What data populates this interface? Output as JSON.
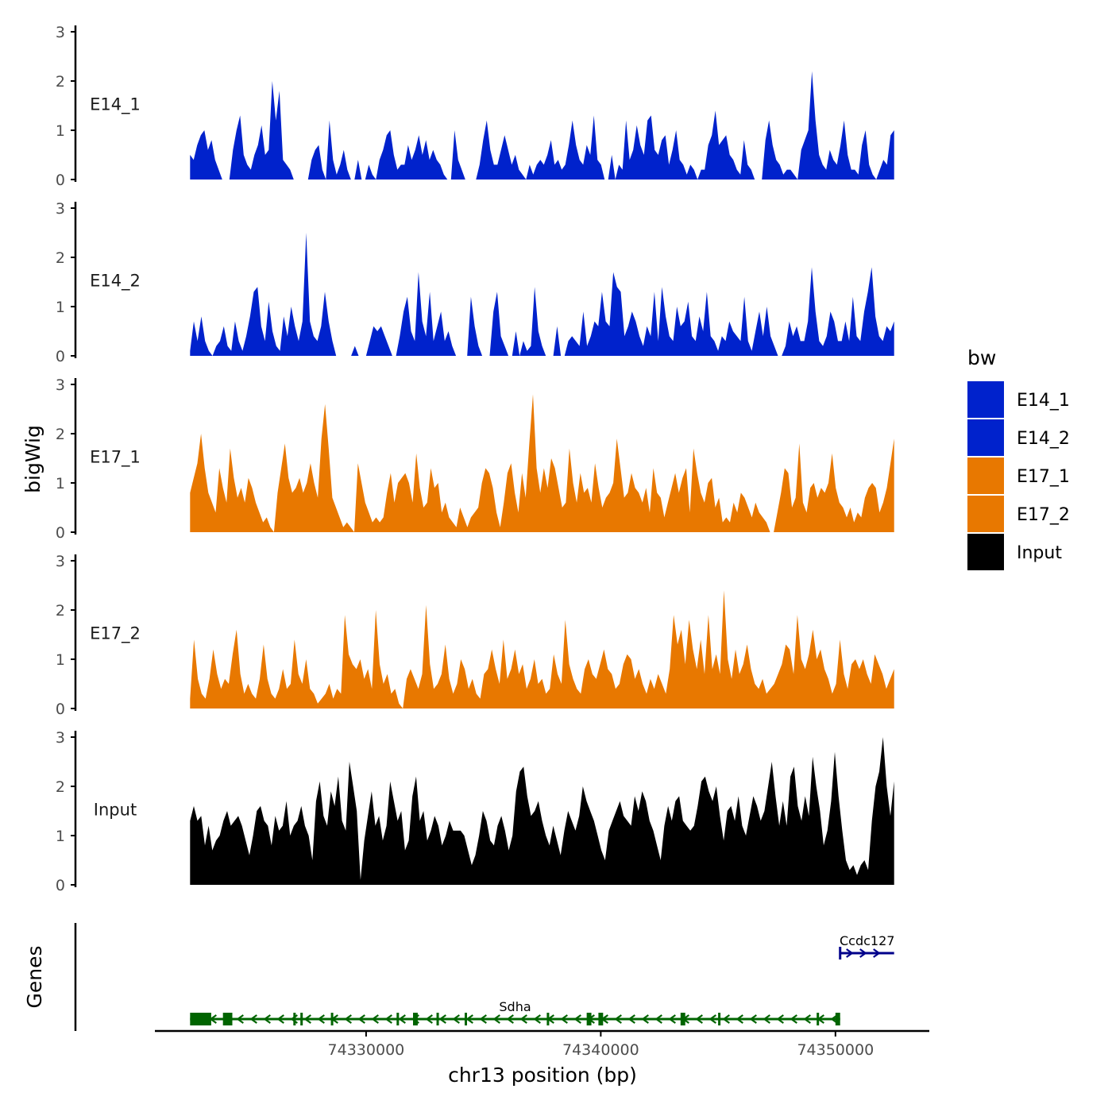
{
  "chart_data": {
    "type": "area",
    "chromosome": "chr13",
    "xlabel": "chr13 position (bp)",
    "xlim": [
      74321000,
      74354000
    ],
    "x_ticks": [
      74330000,
      74340000,
      74350000
    ],
    "x_tick_labels": [
      "74330000",
      "74340000",
      "74350000"
    ],
    "data_range": [
      74322500,
      74352500
    ],
    "ylabel": "bigWig",
    "ylim": [
      0,
      3
    ],
    "y_ticks": [
      0,
      1,
      2,
      3
    ],
    "y_tick_labels": [
      "0",
      "1",
      "2",
      "3"
    ],
    "legend": {
      "title": "bw",
      "position": "right",
      "entries": [
        {
          "label": "E14_1",
          "color": "#0022CC"
        },
        {
          "label": "E14_2",
          "color": "#0022CC"
        },
        {
          "label": "E17_1",
          "color": "#E87800"
        },
        {
          "label": "E17_2",
          "color": "#E87800"
        },
        {
          "label": "Input",
          "color": "#000000"
        }
      ]
    },
    "tracks": [
      {
        "name": "E14_1",
        "color": "#0022CC",
        "values": [
          0.5,
          0.4,
          0.7,
          0.9,
          1.0,
          0.6,
          0.8,
          0.4,
          0.2,
          0,
          0,
          0,
          0.6,
          1.0,
          1.3,
          0.5,
          0.3,
          0.2,
          0.5,
          0.7,
          1.1,
          0.5,
          0.6,
          2.0,
          1.2,
          1.8,
          0.4,
          0.3,
          0.2,
          0,
          0,
          0,
          0,
          0,
          0.4,
          0.6,
          0.7,
          0.2,
          0,
          1.2,
          0.4,
          0.1,
          0.3,
          0.6,
          0.2,
          0,
          0,
          0.4,
          0,
          0,
          0.3,
          0.1,
          0,
          0.4,
          0.6,
          0.9,
          1.0,
          0.5,
          0.2,
          0.3,
          0.3,
          0.7,
          0.4,
          0.6,
          0.9,
          0.5,
          0.8,
          0.4,
          0.6,
          0.4,
          0.3,
          0.1,
          0,
          0,
          1.0,
          0.4,
          0.2,
          0,
          0,
          0,
          0,
          0.3,
          0.8,
          1.2,
          0.6,
          0.3,
          0.3,
          0.6,
          0.9,
          0.6,
          0.3,
          0.5,
          0.2,
          0.1,
          0,
          0.3,
          0.1,
          0.3,
          0.4,
          0.3,
          0.5,
          0.8,
          0.3,
          0.4,
          0.2,
          0.3,
          0.7,
          1.2,
          0.7,
          0.4,
          0.3,
          0.7,
          0.5,
          1.3,
          0.4,
          0.3,
          0,
          0,
          0.5,
          0,
          0.3,
          0.2,
          1.2,
          0.4,
          0.6,
          1.1,
          0.7,
          0.5,
          1.2,
          1.3,
          0.6,
          0.5,
          0.8,
          0.9,
          0.3,
          0.6,
          1.0,
          0.4,
          0.3,
          0.1,
          0.3,
          0.2,
          0,
          0.2,
          0.2,
          0.7,
          0.9,
          1.4,
          0.7,
          0.8,
          0.9,
          0.5,
          0.4,
          0.2,
          0.1,
          0.8,
          0.3,
          0.2,
          0,
          0,
          0,
          0.8,
          1.2,
          0.7,
          0.4,
          0.3,
          0.1,
          0.2,
          0.2,
          0.1,
          0,
          0.6,
          0.8,
          1.0,
          2.2,
          1.2,
          0.5,
          0.3,
          0.2,
          0.6,
          0.4,
          0.3,
          0.7,
          1.2,
          0.5,
          0.2,
          0.2,
          0.1,
          0.7,
          1.0,
          0.3,
          0.1,
          0,
          0.2,
          0.4,
          0.3,
          0.9,
          1.0
        ]
      },
      {
        "name": "E14_2",
        "color": "#0022CC",
        "values": [
          0.1,
          0.7,
          0.3,
          0.8,
          0.3,
          0.1,
          0,
          0.2,
          0.3,
          0.6,
          0.2,
          0.1,
          0.7,
          0.3,
          0.1,
          0.4,
          0.8,
          1.3,
          1.4,
          0.6,
          0.3,
          1.1,
          0.5,
          0.2,
          0.1,
          0.8,
          0.4,
          1.0,
          0.6,
          0.3,
          0.7,
          2.5,
          0.7,
          0.4,
          0.3,
          0.6,
          1.3,
          0.7,
          0.3,
          0,
          0,
          0,
          0,
          0,
          0.2,
          0,
          0,
          0,
          0.3,
          0.6,
          0.5,
          0.6,
          0.4,
          0.2,
          0,
          0,
          0.4,
          0.9,
          1.2,
          0.5,
          0.3,
          1.7,
          0.7,
          0.4,
          1.3,
          0.3,
          0.6,
          0.9,
          0.3,
          0.5,
          0.2,
          0,
          0,
          0,
          0,
          1.2,
          0.6,
          0.2,
          0,
          0,
          0,
          0.9,
          1.3,
          0.4,
          0.2,
          0,
          0,
          0.5,
          0,
          0.3,
          0.1,
          0.2,
          1.4,
          0.5,
          0.2,
          0,
          0,
          0,
          0.6,
          0,
          0,
          0.3,
          0.4,
          0.3,
          0.2,
          0.9,
          0.2,
          0.4,
          0.7,
          0.6,
          1.3,
          0.7,
          0.6,
          1.7,
          1.4,
          1.3,
          0.4,
          0.6,
          0.9,
          0.7,
          0.4,
          0.2,
          0.6,
          0.4,
          1.3,
          0.3,
          1.4,
          0.8,
          0.4,
          0.3,
          1.0,
          0.6,
          0.7,
          1.1,
          0.4,
          0.3,
          0.8,
          0.5,
          1.3,
          0.4,
          0.3,
          0.1,
          0.4,
          0.3,
          0.7,
          0.5,
          0.4,
          0.3,
          1.2,
          0.3,
          0.1,
          0.5,
          0.9,
          0.4,
          1.0,
          0.4,
          0.2,
          0,
          0,
          0.2,
          0.7,
          0.4,
          0.6,
          0.3,
          0.3,
          0.7,
          1.8,
          0.9,
          0.3,
          0.2,
          0.4,
          0.9,
          0.7,
          0.3,
          0.3,
          0.7,
          0.3,
          1.2,
          0.4,
          0.3,
          0.9,
          1.3,
          1.8,
          0.8,
          0.4,
          0.3,
          0.6,
          0.5,
          0.7
        ]
      },
      {
        "name": "E17_1",
        "color": "#E87800",
        "values": [
          0.8,
          1.1,
          1.4,
          2.0,
          1.3,
          0.8,
          0.6,
          0.4,
          1.3,
          0.9,
          0.6,
          1.7,
          1.1,
          0.7,
          0.9,
          0.6,
          1.1,
          0.9,
          0.6,
          0.4,
          0.2,
          0.3,
          0.1,
          0,
          0.8,
          1.3,
          1.8,
          1.1,
          0.8,
          0.9,
          1.1,
          0.8,
          1.0,
          1.4,
          1.0,
          0.7,
          1.9,
          2.6,
          1.7,
          0.7,
          0.5,
          0.3,
          0.1,
          0.2,
          0.1,
          0,
          1.4,
          1.0,
          0.6,
          0.4,
          0.2,
          0.3,
          0.2,
          0.3,
          0.8,
          1.2,
          0.6,
          1.0,
          1.1,
          1.2,
          1.0,
          0.6,
          1.6,
          0.9,
          0.5,
          0.6,
          1.3,
          0.9,
          1.0,
          0.4,
          0.6,
          0.3,
          0.2,
          0.1,
          0.5,
          0.3,
          0.1,
          0.3,
          0.4,
          0.5,
          1.0,
          1.3,
          1.2,
          0.9,
          0.4,
          0.1,
          0.6,
          1.2,
          1.4,
          0.8,
          0.4,
          1.2,
          0.7,
          1.8,
          2.8,
          1.3,
          0.8,
          1.3,
          0.9,
          1.5,
          1.3,
          0.9,
          0.5,
          0.6,
          1.7,
          1.0,
          0.6,
          1.2,
          0.8,
          0.9,
          0.6,
          1.4,
          0.9,
          0.5,
          0.7,
          0.8,
          1.0,
          1.9,
          1.3,
          0.7,
          0.8,
          1.2,
          0.9,
          0.8,
          0.6,
          0.9,
          0.4,
          1.3,
          0.8,
          0.7,
          0.3,
          0.6,
          0.9,
          1.2,
          0.8,
          1.1,
          1.3,
          0.4,
          1.7,
          1.2,
          0.8,
          0.6,
          1.0,
          1.1,
          0.5,
          0.7,
          0.2,
          0.3,
          0.2,
          0.6,
          0.4,
          0.8,
          0.7,
          0.5,
          0.3,
          0.6,
          0.4,
          0.3,
          0.2,
          0,
          0,
          0.4,
          0.8,
          1.3,
          1.2,
          0.5,
          0.7,
          1.8,
          0.6,
          0.4,
          0.9,
          1.0,
          0.7,
          0.9,
          0.8,
          1.0,
          1.6,
          0.9,
          0.6,
          0.5,
          0.3,
          0.5,
          0.2,
          0.4,
          0.3,
          0.7,
          0.9,
          1.0,
          0.9,
          0.4,
          0.6,
          0.9,
          1.4,
          1.9
        ]
      },
      {
        "name": "E17_2",
        "color": "#E87800",
        "values": [
          0.2,
          1.4,
          0.6,
          0.3,
          0.2,
          0.6,
          1.2,
          0.7,
          0.4,
          0.6,
          0.5,
          1.1,
          1.6,
          0.7,
          0.3,
          0.5,
          0.3,
          0.2,
          0.6,
          1.3,
          0.6,
          0.3,
          0.2,
          0.4,
          0.8,
          0.4,
          0.5,
          1.4,
          0.7,
          0.5,
          1.0,
          0.4,
          0.3,
          0.1,
          0.2,
          0.3,
          0.5,
          0.2,
          0.4,
          0.3,
          1.9,
          1.1,
          0.9,
          0.8,
          1.0,
          0.6,
          0.8,
          0.4,
          2.0,
          0.9,
          0.5,
          0.7,
          0.3,
          0.4,
          0.1,
          0,
          0.6,
          0.8,
          0.6,
          0.4,
          0.7,
          2.1,
          0.9,
          0.4,
          0.5,
          0.7,
          1.3,
          0.6,
          0.3,
          0.5,
          1.0,
          0.8,
          0.4,
          0.6,
          0.3,
          0.2,
          0.7,
          0.8,
          1.2,
          0.8,
          0.5,
          1.4,
          0.6,
          0.8,
          1.2,
          0.7,
          0.9,
          0.4,
          0.6,
          1.0,
          0.5,
          0.6,
          0.3,
          0.4,
          1.1,
          0.7,
          0.5,
          1.8,
          0.9,
          0.6,
          0.4,
          0.3,
          0.8,
          1.0,
          0.7,
          0.6,
          0.9,
          1.2,
          0.8,
          0.7,
          0.4,
          0.5,
          0.9,
          1.1,
          1.0,
          0.6,
          0.8,
          0.5,
          0.3,
          0.6,
          0.4,
          0.7,
          0.5,
          0.3,
          0.8,
          1.9,
          1.3,
          1.6,
          0.9,
          1.8,
          1.2,
          0.8,
          1.4,
          0.7,
          1.9,
          0.8,
          1.1,
          0.7,
          2.4,
          1.0,
          0.6,
          1.2,
          0.7,
          0.9,
          1.3,
          0.8,
          0.5,
          0.4,
          0.6,
          0.3,
          0.4,
          0.5,
          0.7,
          0.9,
          1.3,
          1.2,
          0.7,
          1.9,
          1.0,
          0.8,
          1.1,
          1.6,
          1.0,
          1.2,
          0.8,
          0.6,
          0.3,
          0.5,
          1.4,
          0.7,
          0.4,
          0.9,
          1.0,
          0.8,
          1.0,
          0.7,
          0.5,
          1.1,
          0.9,
          0.7,
          0.4,
          0.6,
          0.8
        ]
      },
      {
        "name": "Input",
        "color": "#000000",
        "values": [
          1.3,
          1.6,
          1.3,
          1.4,
          0.8,
          1.2,
          0.7,
          0.9,
          1.0,
          1.3,
          1.5,
          1.2,
          1.3,
          1.4,
          1.2,
          0.9,
          0.6,
          1.0,
          1.5,
          1.6,
          1.3,
          1.2,
          0.8,
          1.4,
          1.1,
          1.2,
          1.7,
          1.0,
          1.2,
          1.3,
          1.6,
          1.2,
          1.0,
          0.5,
          1.7,
          2.1,
          1.4,
          1.2,
          1.9,
          1.6,
          2.2,
          1.3,
          1.1,
          2.5,
          2.0,
          1.5,
          0.1,
          0.9,
          1.4,
          1.9,
          1.2,
          1.4,
          0.9,
          1.2,
          2.1,
          1.7,
          1.3,
          1.5,
          0.7,
          0.9,
          1.8,
          2.2,
          1.3,
          1.5,
          0.9,
          1.1,
          1.4,
          1.2,
          0.8,
          1.0,
          1.3,
          1.1,
          1.1,
          1.1,
          1.0,
          0.7,
          0.4,
          0.6,
          1.0,
          1.5,
          1.3,
          0.9,
          0.8,
          1.2,
          1.4,
          1.1,
          0.7,
          1.0,
          1.9,
          2.3,
          2.4,
          1.8,
          1.4,
          1.5,
          1.7,
          1.3,
          1.0,
          0.8,
          1.2,
          0.9,
          0.6,
          1.1,
          1.5,
          1.3,
          1.1,
          1.4,
          2.0,
          1.7,
          1.5,
          1.3,
          1.0,
          0.7,
          0.5,
          1.1,
          1.3,
          1.5,
          1.7,
          1.4,
          1.3,
          1.2,
          1.8,
          1.5,
          1.9,
          1.7,
          1.3,
          1.1,
          0.8,
          0.5,
          1.2,
          1.6,
          1.3,
          1.7,
          1.8,
          1.3,
          1.2,
          1.1,
          1.2,
          1.6,
          2.1,
          2.2,
          1.9,
          1.7,
          2.0,
          1.4,
          0.9,
          1.5,
          1.6,
          1.3,
          1.8,
          1.2,
          1.0,
          1.4,
          1.8,
          1.6,
          1.3,
          1.5,
          2.0,
          2.5,
          1.8,
          1.2,
          1.7,
          1.2,
          2.2,
          2.4,
          1.6,
          1.3,
          1.8,
          1.4,
          2.6,
          2.0,
          1.5,
          0.8,
          1.1,
          1.7,
          2.7,
          1.8,
          1.1,
          0.5,
          0.3,
          0.4,
          0.2,
          0.4,
          0.5,
          0.3,
          1.3,
          2.0,
          2.3,
          3.0,
          2.0,
          1.4,
          2.1
        ]
      }
    ],
    "genes": [
      {
        "name": "Sdha",
        "color": "#006400",
        "strand": "-",
        "start": 74322500,
        "end": 74350200,
        "exons": [
          [
            74322500,
            74323400
          ],
          [
            74323900,
            74324300
          ],
          [
            74326900,
            74327000
          ],
          [
            74327200,
            74327300
          ],
          [
            74328500,
            74328600
          ],
          [
            74331300,
            74331400
          ],
          [
            74332000,
            74332200
          ],
          [
            74333000,
            74333100
          ],
          [
            74334200,
            74334300
          ],
          [
            74337700,
            74337800
          ],
          [
            74339400,
            74339600
          ],
          [
            74339900,
            74340100
          ],
          [
            74343400,
            74343600
          ],
          [
            74345000,
            74345100
          ],
          [
            74349200,
            74349300
          ],
          [
            74350000,
            74350200
          ]
        ]
      },
      {
        "name": "Ccdc127",
        "color": "#00008B",
        "strand": "+",
        "start": 74350200,
        "end": 74352500,
        "exons": []
      }
    ]
  }
}
